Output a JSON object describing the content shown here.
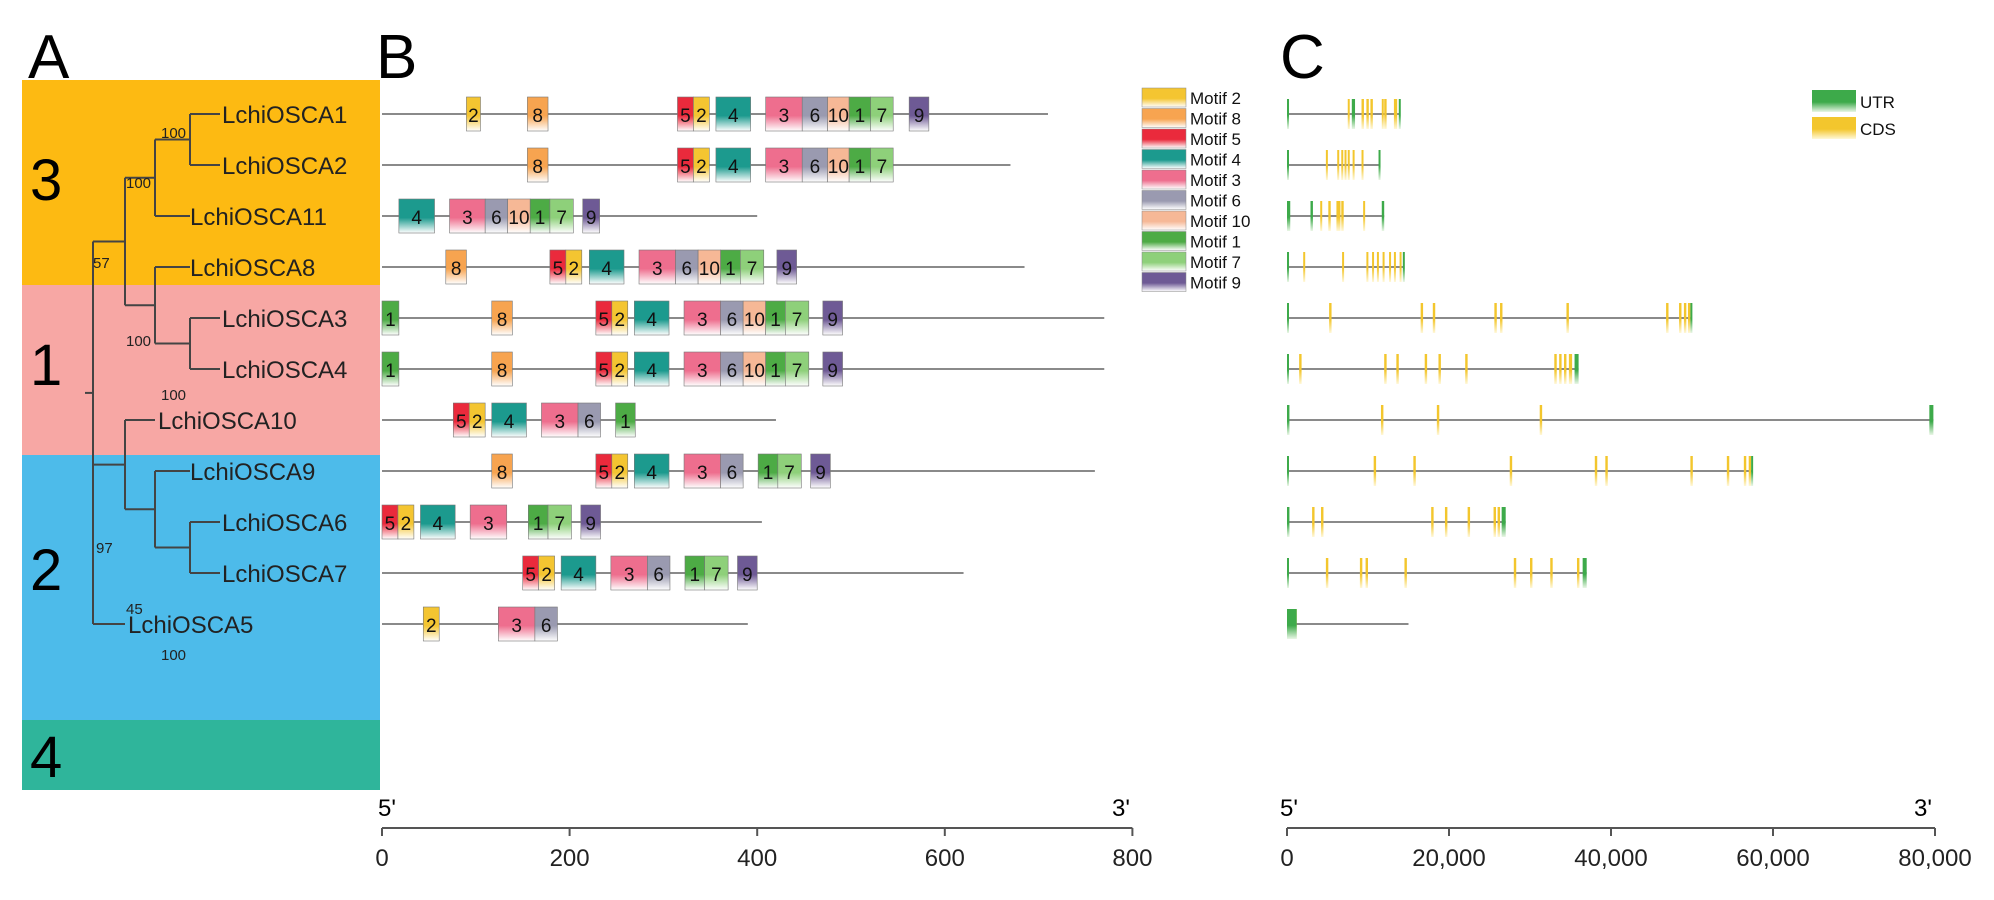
{
  "panels": {
    "a": "A",
    "b": "B",
    "c": "C"
  },
  "colors": {
    "group3": "#fdba12",
    "group1": "#f7a7a4",
    "group2": "#4dbbea",
    "group4": "#2fb59b",
    "branch": "#444444",
    "line": "#8a8a8a",
    "utr": "#3daa4a",
    "cds": "#f3c62d"
  },
  "groups": [
    {
      "id": "3",
      "label": "3",
      "color_key": "group3"
    },
    {
      "id": "1",
      "label": "1",
      "color_key": "group1"
    },
    {
      "id": "2",
      "label": "2",
      "color_key": "group2"
    },
    {
      "id": "4",
      "label": "4",
      "color_key": "group4"
    }
  ],
  "genes": [
    {
      "name": "LchiOSCA1",
      "length": 710,
      "motifs": [
        [
          2,
          90,
          105
        ],
        [
          8,
          155,
          177
        ],
        [
          5,
          315,
          332
        ],
        [
          2,
          332,
          349
        ],
        [
          4,
          356,
          393
        ],
        [
          3,
          409,
          448
        ],
        [
          6,
          448,
          475
        ],
        [
          10,
          475,
          498
        ],
        [
          1,
          498,
          521
        ],
        [
          7,
          521,
          545
        ],
        [
          9,
          562,
          583
        ]
      ],
      "gene_length": 14000,
      "utr": [
        [
          0,
          250
        ],
        [
          8000,
          8400
        ],
        [
          13800,
          14000
        ]
      ],
      "cds": [
        [
          7500,
          7700
        ],
        [
          9200,
          9500
        ],
        [
          9800,
          10100
        ],
        [
          10300,
          10600
        ],
        [
          11700,
          11800
        ],
        [
          12000,
          12300
        ],
        [
          13200,
          13600
        ]
      ]
    },
    {
      "name": "LchiOSCA2",
      "length": 670,
      "motifs": [
        [
          8,
          155,
          177
        ],
        [
          5,
          315,
          332
        ],
        [
          2,
          332,
          349
        ],
        [
          4,
          356,
          393
        ],
        [
          3,
          409,
          448
        ],
        [
          6,
          448,
          475
        ],
        [
          10,
          475,
          498
        ],
        [
          1,
          498,
          521
        ],
        [
          7,
          521,
          545
        ]
      ],
      "gene_length": 11500,
      "utr": [
        [
          0,
          200
        ],
        [
          11300,
          11500
        ]
      ],
      "cds": [
        [
          4800,
          5000
        ],
        [
          6200,
          6400
        ],
        [
          6700,
          6900
        ],
        [
          7100,
          7300
        ],
        [
          7500,
          7700
        ],
        [
          8100,
          8300
        ],
        [
          9200,
          9400
        ]
      ]
    },
    {
      "name": "LchiOSCA11",
      "length": 400,
      "motifs": [
        [
          4,
          18,
          56
        ],
        [
          3,
          72,
          110
        ],
        [
          6,
          110,
          134
        ],
        [
          10,
          134,
          158
        ],
        [
          1,
          158,
          179
        ],
        [
          7,
          179,
          204
        ],
        [
          9,
          214,
          232
        ]
      ],
      "gene_length": 12000,
      "utr": [
        [
          0,
          400
        ],
        [
          2900,
          3200
        ],
        [
          11700,
          12000
        ]
      ],
      "cds": [
        [
          4100,
          4300
        ],
        [
          5100,
          5400
        ],
        [
          6100,
          6600
        ],
        [
          6700,
          7000
        ],
        [
          9400,
          9600
        ]
      ]
    },
    {
      "name": "LchiOSCA8",
      "length": 685,
      "motifs": [
        [
          8,
          68,
          90
        ],
        [
          5,
          179,
          196
        ],
        [
          2,
          196,
          213
        ],
        [
          4,
          221,
          258
        ],
        [
          3,
          274,
          313
        ],
        [
          6,
          313,
          337
        ],
        [
          10,
          337,
          361
        ],
        [
          1,
          361,
          382
        ],
        [
          7,
          382,
          407
        ],
        [
          9,
          421,
          442
        ]
      ],
      "gene_length": 14500,
      "utr": [
        [
          0,
          250
        ],
        [
          14300,
          14500
        ]
      ],
      "cds": [
        [
          2000,
          2200
        ],
        [
          6800,
          7000
        ],
        [
          9800,
          10000
        ],
        [
          10500,
          10700
        ],
        [
          11100,
          11300
        ],
        [
          11800,
          12000
        ],
        [
          12600,
          12800
        ],
        [
          13200,
          13400
        ],
        [
          13900,
          14100
        ]
      ]
    },
    {
      "name": "LchiOSCA3",
      "length": 770,
      "motifs": [
        [
          1,
          0,
          18
        ],
        [
          8,
          117,
          139
        ],
        [
          5,
          228,
          245
        ],
        [
          2,
          245,
          262
        ],
        [
          4,
          269,
          306
        ],
        [
          3,
          322,
          361
        ],
        [
          6,
          361,
          385
        ],
        [
          10,
          385,
          409
        ],
        [
          1,
          409,
          430
        ],
        [
          7,
          430,
          455
        ],
        [
          9,
          470,
          491
        ]
      ],
      "gene_length": 50000,
      "utr": [
        [
          0,
          200
        ],
        [
          49800,
          50000
        ]
      ],
      "cds": [
        [
          5200,
          5500
        ],
        [
          16500,
          16800
        ],
        [
          18000,
          18300
        ],
        [
          25600,
          25900
        ],
        [
          26300,
          26600
        ],
        [
          34500,
          34800
        ],
        [
          46800,
          47100
        ],
        [
          48400,
          48700
        ],
        [
          49000,
          49300
        ],
        [
          49500,
          49800
        ]
      ]
    },
    {
      "name": "LchiOSCA4",
      "length": 770,
      "motifs": [
        [
          1,
          0,
          18
        ],
        [
          8,
          117,
          139
        ],
        [
          5,
          228,
          245
        ],
        [
          2,
          245,
          262
        ],
        [
          4,
          269,
          306
        ],
        [
          3,
          322,
          361
        ],
        [
          6,
          361,
          385
        ],
        [
          10,
          385,
          409
        ],
        [
          1,
          409,
          430
        ],
        [
          7,
          430,
          455
        ],
        [
          9,
          470,
          491
        ]
      ],
      "gene_length": 36000,
      "utr": [
        [
          0,
          200
        ],
        [
          35500,
          36000
        ]
      ],
      "cds": [
        [
          1500,
          1800
        ],
        [
          12000,
          12300
        ],
        [
          13500,
          13800
        ],
        [
          17000,
          17300
        ],
        [
          18700,
          19000
        ],
        [
          22000,
          22300
        ],
        [
          33000,
          33300
        ],
        [
          33600,
          33900
        ],
        [
          34200,
          34500
        ],
        [
          34800,
          35200
        ]
      ]
    },
    {
      "name": "LchiOSCA10",
      "length": 420,
      "motifs": [
        [
          5,
          76,
          93
        ],
        [
          2,
          93,
          110
        ],
        [
          4,
          117,
          154
        ],
        [
          3,
          170,
          209
        ],
        [
          6,
          209,
          233
        ],
        [
          1,
          249,
          270
        ]
      ],
      "gene_length": 79800,
      "utr": [
        [
          0,
          300
        ],
        [
          79300,
          79800
        ]
      ],
      "cds": [
        [
          11600,
          11900
        ],
        [
          18500,
          18800
        ],
        [
          31200,
          31500
        ]
      ]
    },
    {
      "name": "LchiOSCA9",
      "length": 760,
      "motifs": [
        [
          8,
          117,
          139
        ],
        [
          5,
          228,
          245
        ],
        [
          2,
          245,
          262
        ],
        [
          4,
          269,
          306
        ],
        [
          3,
          322,
          361
        ],
        [
          6,
          361,
          385
        ],
        [
          1,
          401,
          422
        ],
        [
          7,
          422,
          447
        ],
        [
          9,
          457,
          478
        ]
      ],
      "gene_length": 57500,
      "utr": [
        [
          0,
          200
        ],
        [
          57300,
          57500
        ]
      ],
      "cds": [
        [
          10700,
          11000
        ],
        [
          15600,
          15900
        ],
        [
          27500,
          27800
        ],
        [
          38000,
          38300
        ],
        [
          39300,
          39600
        ],
        [
          49800,
          50100
        ],
        [
          54300,
          54600
        ],
        [
          56400,
          56700
        ],
        [
          57000,
          57300
        ]
      ]
    },
    {
      "name": "LchiOSCA6",
      "length": 405,
      "motifs": [
        [
          5,
          0,
          17
        ],
        [
          2,
          17,
          34
        ],
        [
          4,
          41,
          78
        ],
        [
          3,
          94,
          133
        ],
        [
          1,
          156,
          177
        ],
        [
          7,
          177,
          202
        ],
        [
          9,
          212,
          233
        ]
      ],
      "gene_length": 27000,
      "utr": [
        [
          0,
          300
        ],
        [
          26500,
          27000
        ]
      ],
      "cds": [
        [
          3100,
          3400
        ],
        [
          4200,
          4500
        ],
        [
          17800,
          18100
        ],
        [
          19500,
          19800
        ],
        [
          22300,
          22600
        ],
        [
          25500,
          25800
        ],
        [
          26000,
          26300
        ]
      ]
    },
    {
      "name": "LchiOSCA7",
      "length": 620,
      "motifs": [
        [
          5,
          150,
          167
        ],
        [
          2,
          167,
          184
        ],
        [
          4,
          191,
          228
        ],
        [
          3,
          244,
          283
        ],
        [
          6,
          283,
          307
        ],
        [
          1,
          323,
          344
        ],
        [
          7,
          344,
          369
        ],
        [
          9,
          379,
          400
        ]
      ],
      "gene_length": 37000,
      "utr": [
        [
          0,
          200
        ],
        [
          36500,
          37000
        ]
      ],
      "cds": [
        [
          4800,
          5100
        ],
        [
          9000,
          9300
        ],
        [
          9700,
          10000
        ],
        [
          14500,
          14800
        ],
        [
          28000,
          28300
        ],
        [
          30000,
          30300
        ],
        [
          32500,
          32800
        ],
        [
          35800,
          36100
        ]
      ]
    },
    {
      "name": "LchiOSCA5",
      "length": 390,
      "motifs": [
        [
          2,
          44,
          61
        ],
        [
          3,
          124,
          163
        ],
        [
          6,
          163,
          187
        ]
      ],
      "gene_length": 15000,
      "utr": [
        [
          0,
          1200
        ]
      ],
      "cds": [
        [
          0,
          1200
        ]
      ]
    }
  ],
  "tree": {
    "bootstrap": [
      "100",
      "100",
      "57",
      "100",
      "100",
      "97",
      "45",
      "100"
    ]
  },
  "legend_motifs": [
    {
      "id": 2,
      "label": "Motif 2",
      "color": "#f4c531"
    },
    {
      "id": 8,
      "label": "Motif 8",
      "color": "#f7a450"
    },
    {
      "id": 5,
      "label": "Motif 5",
      "color": "#ea2a3c"
    },
    {
      "id": 4,
      "label": "Motif 4",
      "color": "#1c9a8e"
    },
    {
      "id": 3,
      "label": "Motif 3",
      "color": "#ee6e8e"
    },
    {
      "id": 6,
      "label": "Motif 6",
      "color": "#9a9ab0"
    },
    {
      "id": 10,
      "label": "Motif 10",
      "color": "#f6b896"
    },
    {
      "id": 1,
      "label": "Motif 1",
      "color": "#4dab45"
    },
    {
      "id": 7,
      "label": "Motif 7",
      "color": "#8ed07a"
    },
    {
      "id": 9,
      "label": "Motif 9",
      "color": "#6e5a95"
    }
  ],
  "legend_structure": [
    {
      "label": "UTR",
      "color_key": "utr"
    },
    {
      "label": "CDS",
      "color_key": "cds"
    }
  ],
  "axis_b": {
    "start_label": "5'",
    "end_label": "3'",
    "max": 800,
    "ticks": [
      0,
      200,
      400,
      600,
      800
    ],
    "tick_labels": [
      "0",
      "200",
      "400",
      "600",
      "800"
    ]
  },
  "axis_c": {
    "start_label": "5'",
    "end_label": "3'",
    "max": 80000,
    "ticks": [
      0,
      20000,
      40000,
      60000,
      80000
    ],
    "tick_labels": [
      "0",
      "20,000",
      "40,000",
      "60,000",
      "80,000"
    ]
  }
}
